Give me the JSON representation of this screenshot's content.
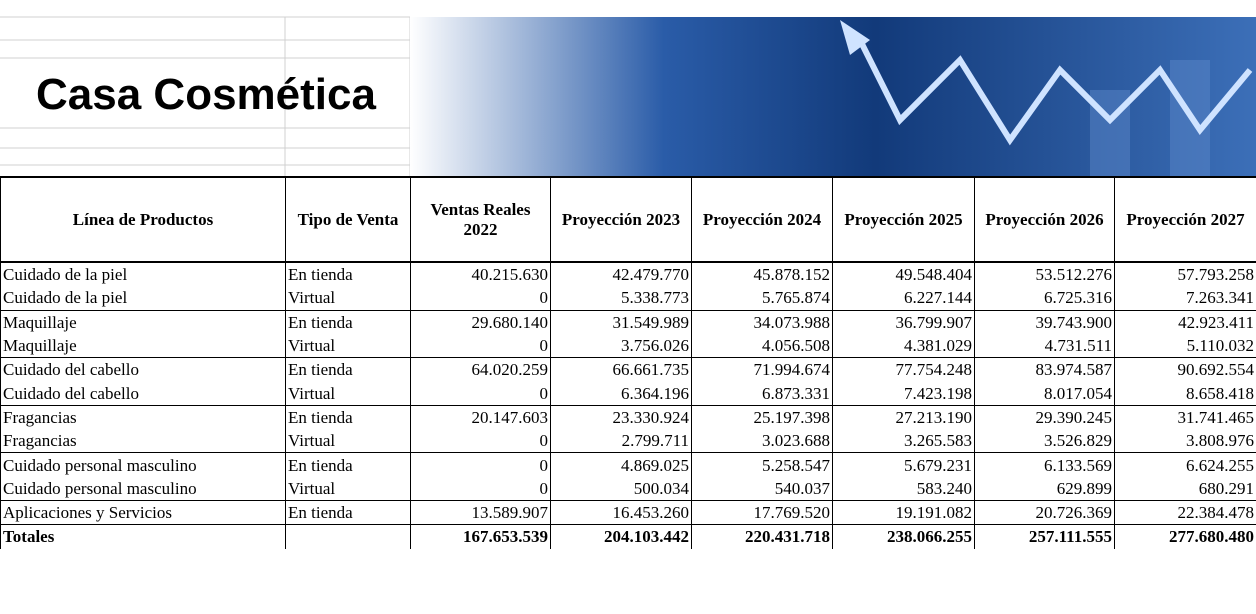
{
  "header": {
    "title": "Casa Cosmética"
  },
  "table": {
    "columns": [
      "Línea de Productos",
      "Tipo de Venta",
      "Ventas Reales 2022",
      "Proyección 2023",
      "Proyección 2024",
      "Proyección 2025",
      "Proyección 2026",
      "Proyección 2027"
    ],
    "rows": [
      [
        "Cuidado de la piel",
        "En tienda",
        "40.215.630",
        "42.479.770",
        "45.878.152",
        "49.548.404",
        "53.512.276",
        "57.793.258"
      ],
      [
        "Cuidado de la piel",
        "Virtual",
        "0",
        "5.338.773",
        "5.765.874",
        "6.227.144",
        "6.725.316",
        "7.263.341"
      ],
      [
        "Maquillaje",
        "En tienda",
        "29.680.140",
        "31.549.989",
        "34.073.988",
        "36.799.907",
        "39.743.900",
        "42.923.411"
      ],
      [
        "Maquillaje",
        "Virtual",
        "0",
        "3.756.026",
        "4.056.508",
        "4.381.029",
        "4.731.511",
        "5.110.032"
      ],
      [
        "Cuidado del cabello",
        "En tienda",
        "64.020.259",
        "66.661.735",
        "71.994.674",
        "77.754.248",
        "83.974.587",
        "90.692.554"
      ],
      [
        "Cuidado del cabello",
        "Virtual",
        "0",
        "6.364.196",
        "6.873.331",
        "7.423.198",
        "8.017.054",
        "8.658.418"
      ],
      [
        "Fragancias",
        "En tienda",
        "20.147.603",
        "23.330.924",
        "25.197.398",
        "27.213.190",
        "29.390.245",
        "31.741.465"
      ],
      [
        "Fragancias",
        "Virtual",
        "0",
        "2.799.711",
        "3.023.688",
        "3.265.583",
        "3.526.829",
        "3.808.976"
      ],
      [
        "Cuidado personal masculino",
        "En tienda",
        "0",
        "4.869.025",
        "5.258.547",
        "5.679.231",
        "6.133.569",
        "6.624.255"
      ],
      [
        "Cuidado personal masculino",
        "Virtual",
        "0",
        "500.034",
        "540.037",
        "583.240",
        "629.899",
        "680.291"
      ],
      [
        "Aplicaciones y Servicios",
        "En tienda",
        "13.589.907",
        "16.453.260",
        "17.769.520",
        "19.191.082",
        "20.726.369",
        "22.384.478"
      ]
    ],
    "totals": {
      "label": "Totales",
      "values": [
        "167.653.539",
        "204.103.442",
        "220.431.718",
        "238.066.255",
        "257.111.555",
        "277.680.480"
      ]
    }
  }
}
